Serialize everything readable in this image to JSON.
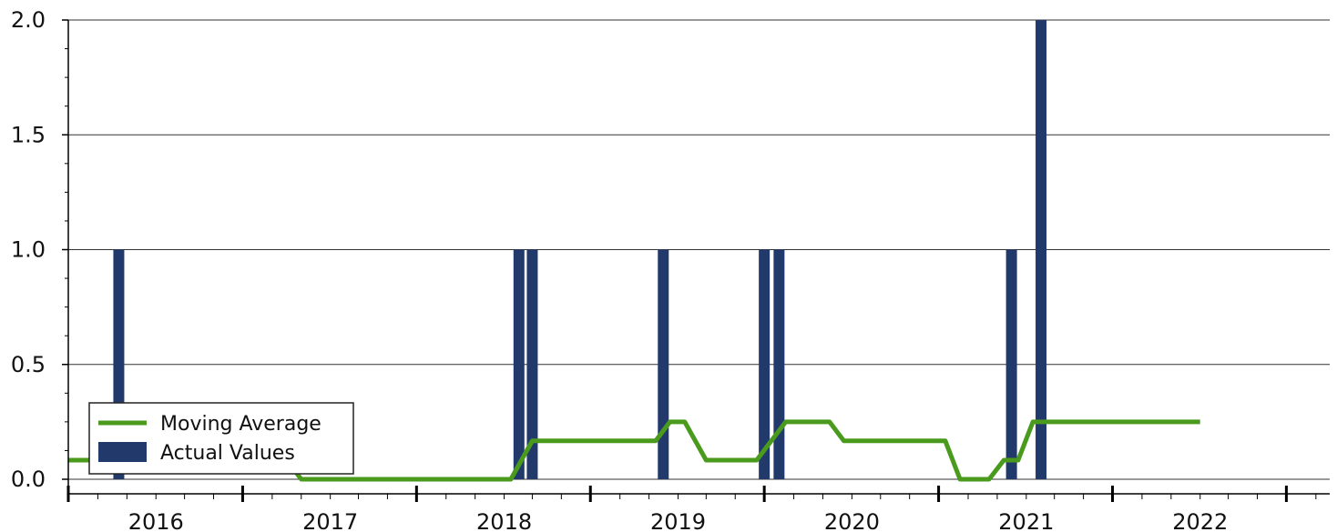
{
  "chart_data": {
    "type": "bar",
    "title": "",
    "xlabel": "",
    "ylabel": "",
    "ylim": [
      0,
      2.0
    ],
    "xlim": [
      "2015-07-01",
      "2022-09-30"
    ],
    "y_ticks": [
      {
        "value": 0.0,
        "label": "0.0"
      },
      {
        "value": 0.5,
        "label": "0.5"
      },
      {
        "value": 1.0,
        "label": "1.0"
      },
      {
        "value": 1.5,
        "label": "1.5"
      },
      {
        "value": 2.0,
        "label": "2.0"
      }
    ],
    "x_year_labels": [
      {
        "date": "2016-01-01",
        "label": "2016"
      },
      {
        "date": "2017-01-01",
        "label": "2017"
      },
      {
        "date": "2018-01-01",
        "label": "2018"
      },
      {
        "date": "2019-01-01",
        "label": "2019"
      },
      {
        "date": "2020-01-01",
        "label": "2020"
      },
      {
        "date": "2021-01-01",
        "label": "2021"
      },
      {
        "date": "2022-01-01",
        "label": "2022"
      }
    ],
    "grid": {
      "horizontal": true,
      "vertical": false
    },
    "legend": {
      "position": "bottom-left"
    },
    "series": [
      {
        "name": "Actual Values",
        "kind": "bar",
        "color": "#223a6b",
        "points": [
          {
            "date": "2015-10-15",
            "value": 1
          },
          {
            "date": "2018-02-01",
            "value": 1
          },
          {
            "date": "2018-03-01",
            "value": 1
          },
          {
            "date": "2018-12-01",
            "value": 1
          },
          {
            "date": "2019-07-01",
            "value": 1
          },
          {
            "date": "2019-08-01",
            "value": 1
          },
          {
            "date": "2020-12-01",
            "value": 1
          },
          {
            "date": "2021-02-01",
            "value": 2
          }
        ]
      },
      {
        "name": "Moving Average",
        "kind": "line",
        "color": "#4a9a1e",
        "points": [
          {
            "date": "2015-07-01",
            "value": 0.083
          },
          {
            "date": "2016-10-01",
            "value": 0.083
          },
          {
            "date": "2016-11-01",
            "value": 0.0
          },
          {
            "date": "2017-12-31",
            "value": 0.0
          },
          {
            "date": "2018-01-15",
            "value": 0.0
          },
          {
            "date": "2018-03-01",
            "value": 0.167
          },
          {
            "date": "2018-11-15",
            "value": 0.167
          },
          {
            "date": "2018-12-15",
            "value": 0.25
          },
          {
            "date": "2019-01-15",
            "value": 0.25
          },
          {
            "date": "2019-03-01",
            "value": 0.083
          },
          {
            "date": "2019-06-15",
            "value": 0.083
          },
          {
            "date": "2019-08-15",
            "value": 0.25
          },
          {
            "date": "2019-11-15",
            "value": 0.25
          },
          {
            "date": "2019-12-15",
            "value": 0.167
          },
          {
            "date": "2020-07-15",
            "value": 0.167
          },
          {
            "date": "2020-08-15",
            "value": 0.0
          },
          {
            "date": "2020-10-15",
            "value": 0.0
          },
          {
            "date": "2020-11-15",
            "value": 0.083
          },
          {
            "date": "2020-12-15",
            "value": 0.083
          },
          {
            "date": "2021-01-15",
            "value": 0.25
          },
          {
            "date": "2022-01-01",
            "value": 0.25
          }
        ]
      }
    ],
    "legend_entries": [
      {
        "label": "Moving Average",
        "swatch": "line",
        "color": "#4a9a1e"
      },
      {
        "label": "Actual Values",
        "swatch": "box",
        "color": "#223a6b"
      }
    ]
  }
}
